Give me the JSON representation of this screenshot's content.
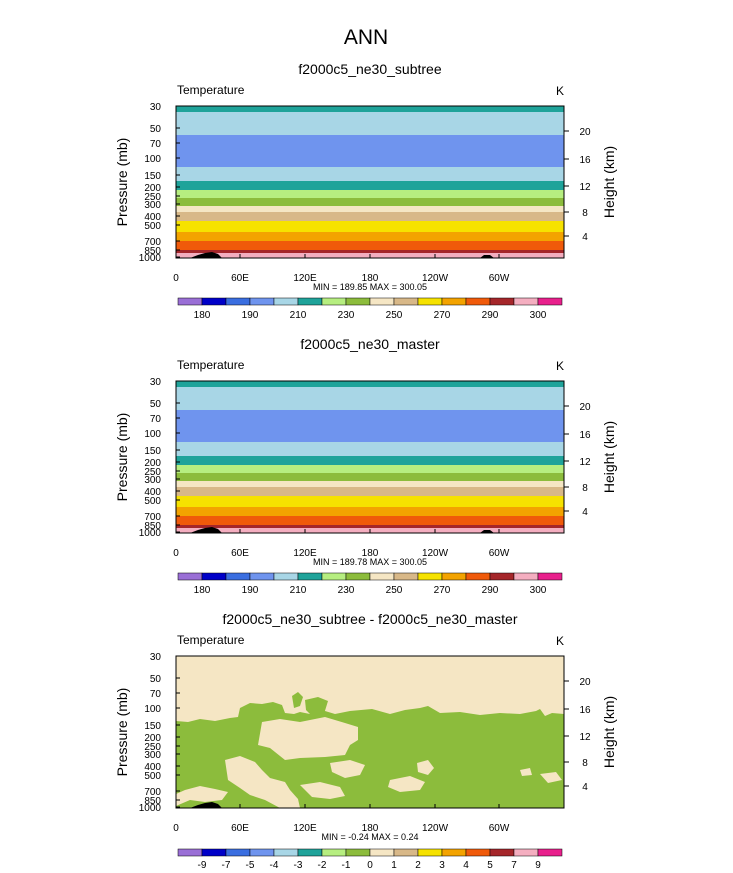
{
  "page_title": "ANN",
  "chart_data": [
    {
      "type": "heatmap",
      "title": "f2000c5_ne30_subtree",
      "field_label": "Temperature",
      "units": "K",
      "ylabel": "Pressure (mb)",
      "ylabel_right": "Height (km)",
      "xtick_labels": [
        "0",
        "60E",
        "120E",
        "180",
        "120W",
        "60W"
      ],
      "pressure_ticks": [
        "30",
        "50",
        "70",
        "100",
        "150",
        "200",
        "250",
        "300",
        "400",
        "500",
        "700",
        "850",
        "1000"
      ],
      "height_ticks": [
        "20",
        "16",
        "12",
        "8",
        "4"
      ],
      "stats": "MIN = 189.85  MAX = 300.05",
      "colorbar_labels": [
        "180",
        "190",
        "210",
        "230",
        "250",
        "270",
        "290",
        "300"
      ],
      "levels": [
        180,
        185,
        190,
        200,
        210,
        220,
        230,
        240,
        250,
        260,
        270,
        280,
        290,
        295,
        300
      ],
      "min": 189.85,
      "max": 300.05
    },
    {
      "type": "heatmap",
      "title": "f2000c5_ne30_master",
      "field_label": "Temperature",
      "units": "K",
      "ylabel": "Pressure (mb)",
      "ylabel_right": "Height (km)",
      "xtick_labels": [
        "0",
        "60E",
        "120E",
        "180",
        "120W",
        "60W"
      ],
      "pressure_ticks": [
        "30",
        "50",
        "70",
        "100",
        "150",
        "200",
        "250",
        "300",
        "400",
        "500",
        "700",
        "850",
        "1000"
      ],
      "height_ticks": [
        "20",
        "16",
        "12",
        "8",
        "4"
      ],
      "stats": "MIN = 189.78  MAX = 300.05",
      "colorbar_labels": [
        "180",
        "190",
        "210",
        "230",
        "250",
        "270",
        "290",
        "300"
      ],
      "levels": [
        180,
        185,
        190,
        200,
        210,
        220,
        230,
        240,
        250,
        260,
        270,
        280,
        290,
        295,
        300
      ],
      "min": 189.78,
      "max": 300.05
    },
    {
      "type": "heatmap",
      "title": "f2000c5_ne30_subtree - f2000c5_ne30_master",
      "field_label": "Temperature",
      "units": "K",
      "ylabel": "Pressure (mb)",
      "ylabel_right": "Height (km)",
      "xtick_labels": [
        "0",
        "60E",
        "120E",
        "180",
        "120W",
        "60W"
      ],
      "pressure_ticks": [
        "30",
        "50",
        "70",
        "100",
        "150",
        "200",
        "250",
        "300",
        "400",
        "500",
        "700",
        "850",
        "1000"
      ],
      "height_ticks": [
        "20",
        "16",
        "12",
        "8",
        "4"
      ],
      "stats": "MIN = -0.24  MAX =  0.24",
      "colorbar_labels": [
        "-9",
        "-7",
        "-5",
        "-4",
        "-3",
        "-2",
        "-1",
        "0",
        "1",
        "2",
        "3",
        "4",
        "5",
        "7",
        "9"
      ],
      "levels": [
        -9,
        -7,
        -5,
        -4,
        -3,
        -2,
        -1,
        0,
        1,
        2,
        3,
        4,
        5,
        7,
        9
      ],
      "min": -0.24,
      "max": 0.24
    }
  ],
  "colors": {
    "palette": [
      "#9a6fd6",
      "#0000c8",
      "#3a6ee0",
      "#6f94ee",
      "#a8d6e6",
      "#1fa39a",
      "#b6ee80",
      "#8cbc3c",
      "#f5e6c4",
      "#d8b888",
      "#f6e200",
      "#f3a300",
      "#f05a0a",
      "#a5262a",
      "#f4aec0",
      "#e8208c"
    ],
    "topography": "#000000"
  }
}
